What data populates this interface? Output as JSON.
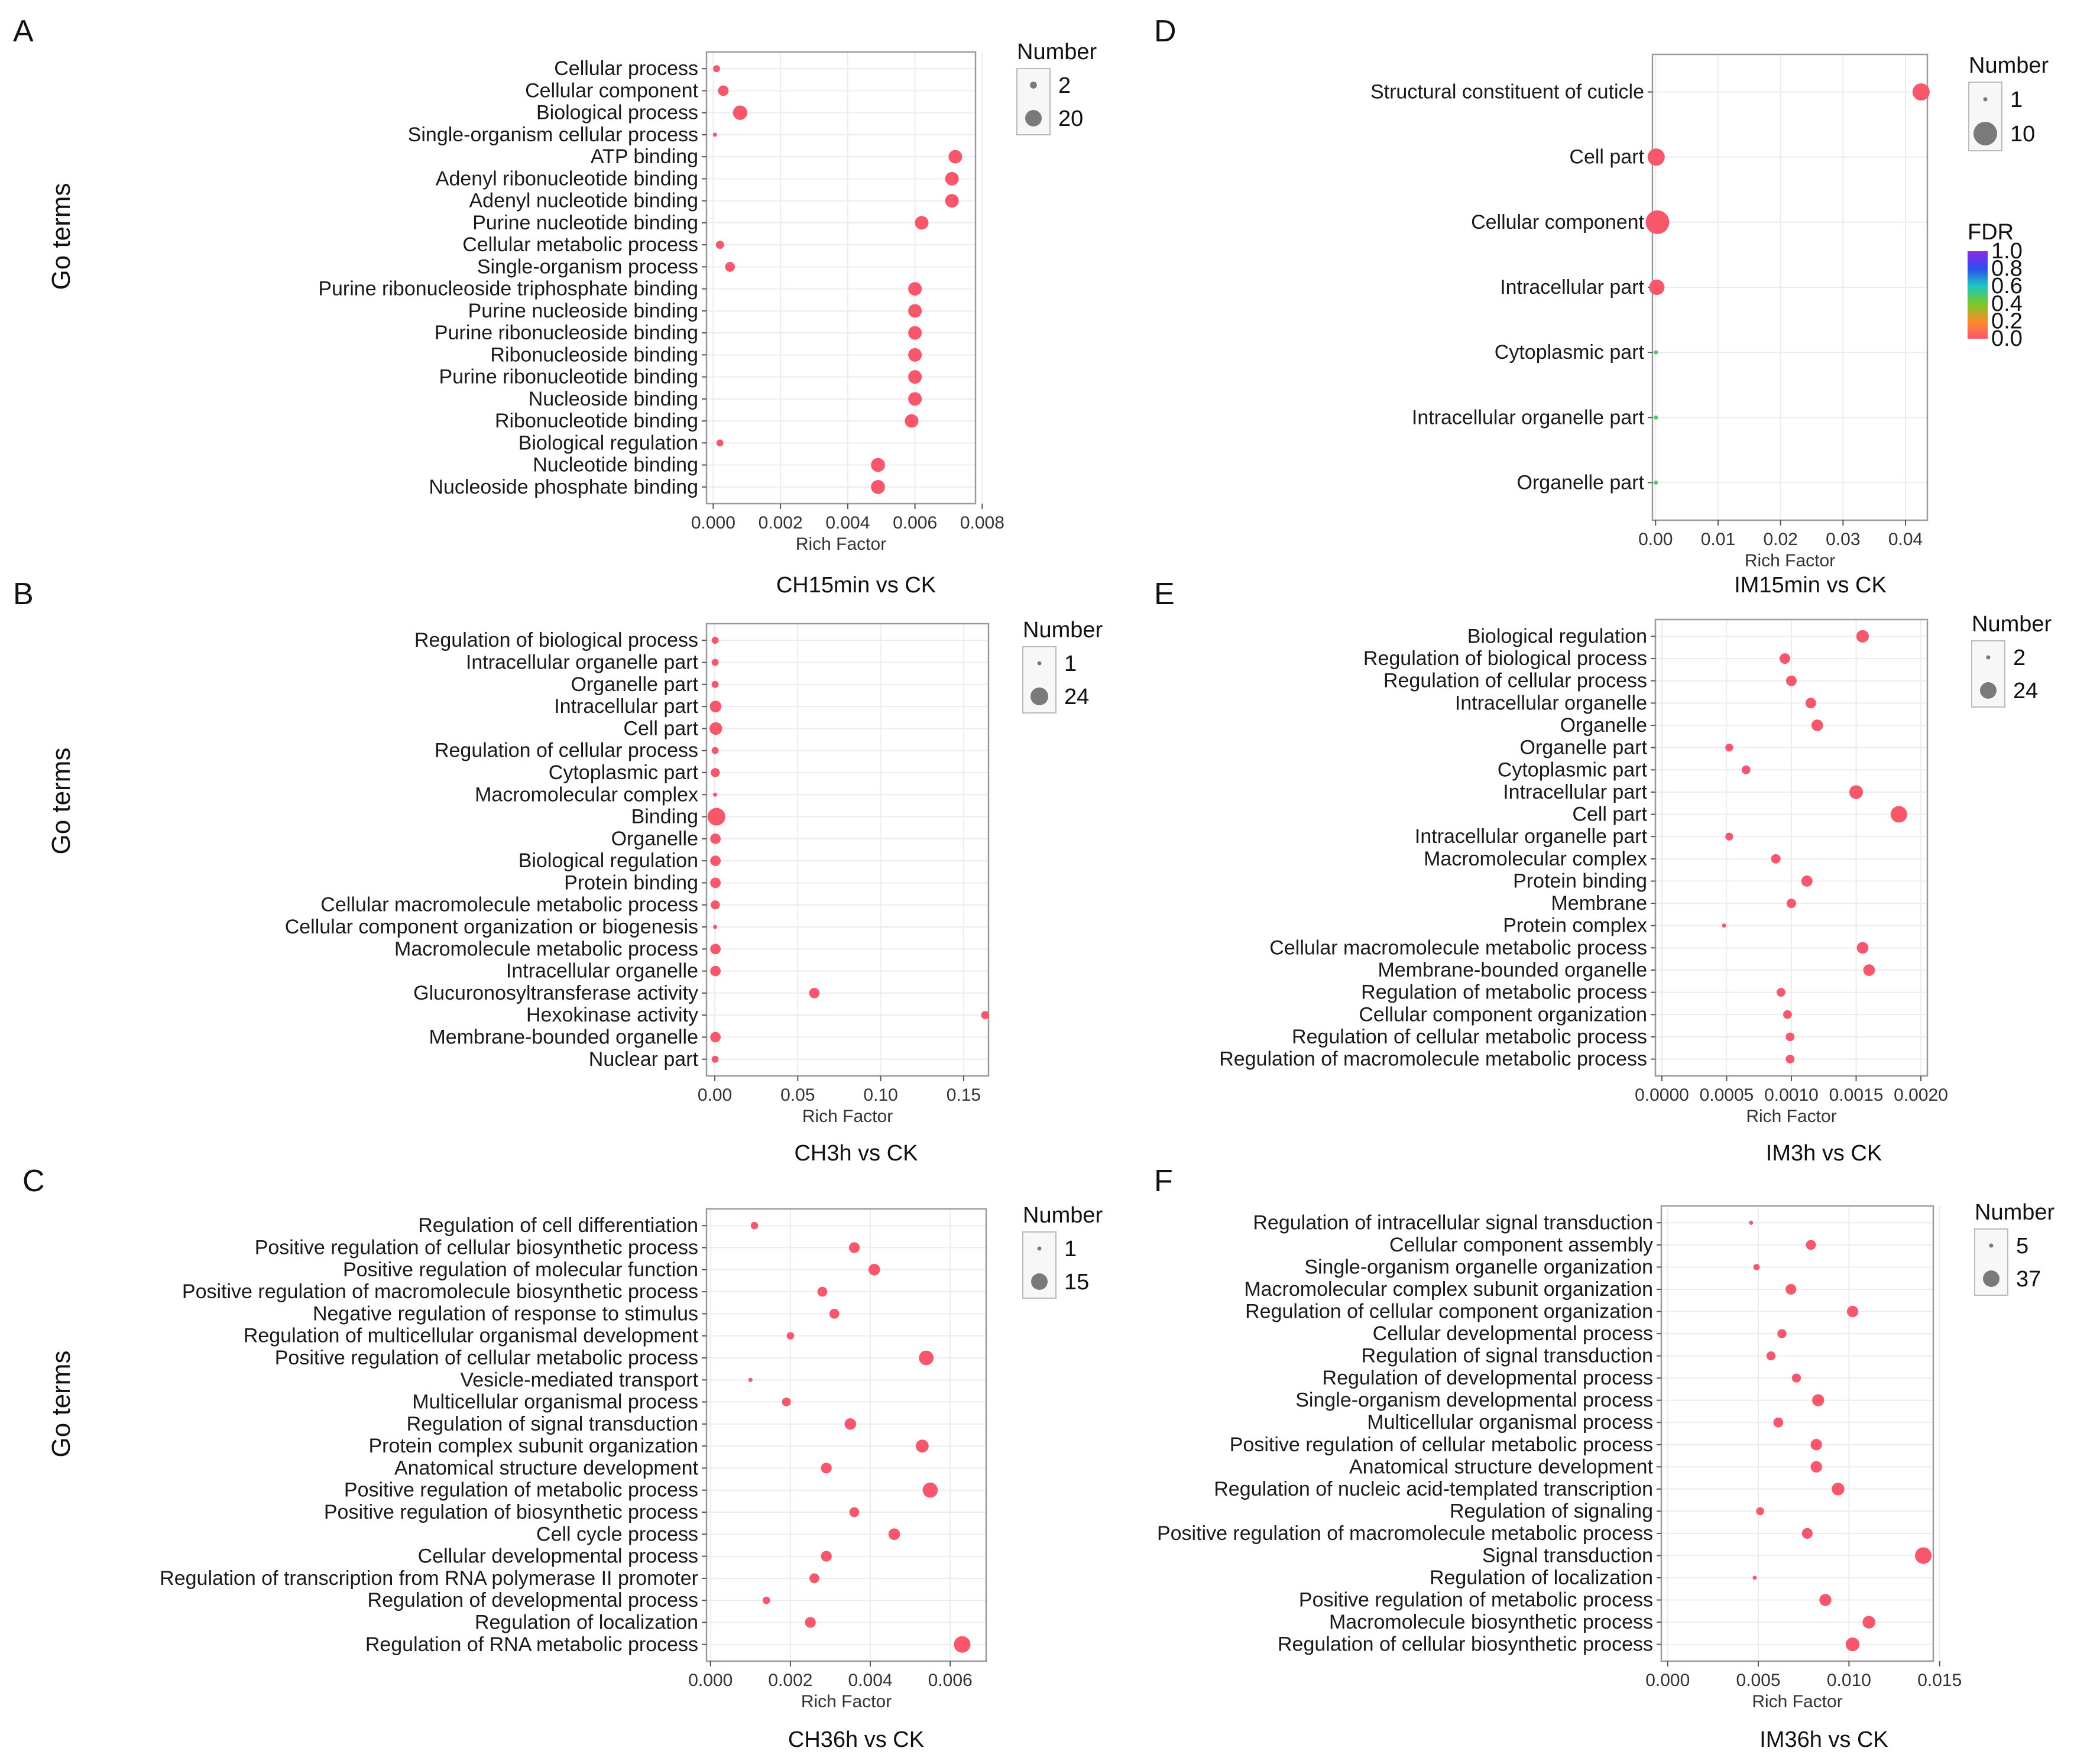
{
  "figure": {
    "y_axis_label": "Go terms",
    "x_axis_label": "Rich Factor",
    "legend_size_title": "Number",
    "legend_color_title": "FDR"
  },
  "colors": {
    "point": "#f8566b",
    "panel_border": "#9a9a9a",
    "grid": "#ececec"
  },
  "chart_data": [
    {
      "panel": "A",
      "type": "scatter",
      "title": "CH15min vs CK",
      "xlabel": "Rich Factor",
      "ylabel": "Go terms",
      "xlim": [
        -0.0002,
        0.0078
      ],
      "xticks": [
        0,
        0.002,
        0.004,
        0.006,
        0.008
      ],
      "xtick_labels": [
        "0.000",
        "0.002",
        "0.004",
        "0.006",
        "0.008"
      ],
      "size_legend": {
        "values": [
          2,
          20
        ],
        "labels": [
          "2",
          "20"
        ]
      },
      "terms": [
        "Cellular process",
        "Cellular component",
        "Biological process",
        "Single-organism cellular process",
        "ATP binding",
        "Adenyl ribonucleotide binding",
        "Adenyl nucleotide binding",
        "Purine nucleotide binding",
        "Cellular metabolic process",
        "Single-organism process",
        "Purine ribonucleoside triphosphate binding",
        "Purine nucleoside binding",
        "Purine ribonucleoside binding",
        "Ribonucleoside binding",
        "Purine ribonucleotide binding",
        "Nucleoside binding",
        "Ribonucleotide binding",
        "Biological regulation",
        "Nucleotide binding",
        "Nucleoside phosphate binding"
      ],
      "x": [
        0.0001,
        0.0003,
        0.0008,
        5e-05,
        0.0072,
        0.0071,
        0.0071,
        0.0062,
        0.0002,
        0.0005,
        0.006,
        0.006,
        0.006,
        0.006,
        0.006,
        0.006,
        0.0059,
        0.0002,
        0.0049,
        0.0049
      ],
      "number": [
        2,
        6,
        14,
        1,
        12,
        12,
        12,
        12,
        3,
        5,
        12,
        12,
        12,
        12,
        12,
        12,
        12,
        2,
        13,
        13
      ]
    },
    {
      "panel": "B",
      "type": "scatter",
      "title": "CH3h vs CK",
      "xlabel": "Rich Factor",
      "ylabel": "Go terms",
      "xlim": [
        -0.005,
        0.165
      ],
      "xticks": [
        0,
        0.05,
        0.1,
        0.15
      ],
      "xtick_labels": [
        "0.00",
        "0.05",
        "0.10",
        "0.15"
      ],
      "size_legend": {
        "values": [
          1,
          24
        ],
        "labels": [
          "1",
          "24"
        ]
      },
      "terms": [
        "Regulation of biological process",
        "Intracellular organelle part",
        "Organelle part",
        "Intracellular part",
        "Cell part",
        "Regulation of cellular process",
        "Cytoplasmic part",
        "Macromolecular complex",
        "Binding",
        "Organelle",
        "Biological regulation",
        "Protein binding",
        "Cellular macromolecule metabolic process",
        "Cellular component organization or biogenesis",
        "Macromolecule metabolic process",
        "Intracellular organelle",
        "Glucuronosyltransferase activity",
        "Hexokinase activity",
        "Membrane-bounded organelle",
        "Nuclear part"
      ],
      "x": [
        0.0002,
        0.0002,
        0.0002,
        0.0005,
        0.0006,
        0.0002,
        0.0003,
        0.0002,
        0.001,
        0.0004,
        0.0004,
        0.0004,
        0.0003,
        0.0002,
        0.0004,
        0.0004,
        0.06,
        0.163,
        0.0004,
        0.0002
      ],
      "number": [
        2,
        2,
        2,
        8,
        10,
        2,
        4,
        1,
        24,
        6,
        6,
        6,
        4,
        1,
        6,
        6,
        6,
        3,
        6,
        2
      ]
    },
    {
      "panel": "C",
      "type": "scatter",
      "title": "CH36h vs CK",
      "xlabel": "Rich Factor",
      "ylabel": "Go terms",
      "xlim": [
        -0.0001,
        0.0069
      ],
      "xticks": [
        0,
        0.002,
        0.004,
        0.006
      ],
      "xtick_labels": [
        "0.000",
        "0.002",
        "0.004",
        "0.006"
      ],
      "size_legend": {
        "values": [
          1,
          15
        ],
        "labels": [
          "1",
          "15"
        ]
      },
      "terms": [
        "Regulation of cell differentiation",
        "Positive regulation of cellular biosynthetic process",
        "Positive regulation of molecular function",
        "Positive regulation of macromolecule biosynthetic process",
        "Negative regulation of response to stimulus",
        "Regulation of multicellular organismal development",
        "Positive regulation of cellular metabolic process",
        "Vesicle-mediated transport",
        "Multicellular organismal process",
        "Regulation of signal transduction",
        "Protein complex subunit organization",
        "Anatomical structure development",
        "Positive regulation of metabolic process",
        "Positive regulation of biosynthetic process",
        "Cell cycle process",
        "Cellular developmental process",
        "Regulation of transcription from RNA polymerase II promoter",
        "Regulation of developmental process",
        "Regulation of localization",
        "Regulation of RNA metabolic process"
      ],
      "x": [
        0.0011,
        0.0036,
        0.0041,
        0.0028,
        0.0031,
        0.002,
        0.0054,
        0.001,
        0.0019,
        0.0035,
        0.0053,
        0.0029,
        0.0055,
        0.0036,
        0.0046,
        0.0029,
        0.0026,
        0.0014,
        0.0025,
        0.0063
      ],
      "number": [
        2,
        5,
        6,
        4,
        4,
        2,
        11,
        1,
        3,
        6,
        8,
        5,
        12,
        4,
        6,
        5,
        4,
        2,
        5,
        15
      ]
    },
    {
      "panel": "D",
      "type": "scatter",
      "title": "IM15min vs CK",
      "xlabel": "Rich Factor",
      "ylabel": "",
      "xlim": [
        -0.0005,
        0.0435
      ],
      "xticks": [
        0,
        0.01,
        0.02,
        0.03,
        0.04
      ],
      "xtick_labels": [
        "0.00",
        "0.01",
        "0.02",
        "0.03",
        "0.04"
      ],
      "size_legend": {
        "values": [
          1,
          10
        ],
        "labels": [
          "1",
          "10"
        ]
      },
      "fdr_legend": {
        "ticks": [
          "1.0",
          "0.8",
          "0.6",
          "0.4",
          "0.2",
          "0.0"
        ]
      },
      "terms": [
        "Structural constituent of cuticle",
        "Cell part",
        "Cellular component",
        "Intracellular part",
        "Cytoplasmic part",
        "Intracellular organelle part",
        "Organelle part"
      ],
      "x": [
        0.0425,
        0.0001,
        0.0003,
        0.0002,
        5e-05,
        5e-05,
        5e-05
      ],
      "number": [
        5,
        5,
        10,
        4,
        1,
        1,
        1
      ],
      "fdr": [
        0.0,
        0.0,
        0.0,
        0.0,
        0.5,
        0.5,
        0.5
      ]
    },
    {
      "panel": "E",
      "type": "scatter",
      "title": "IM3h vs CK",
      "xlabel": "Rich Factor",
      "ylabel": "",
      "xlim": [
        -5e-05,
        0.00205
      ],
      "xticks": [
        0,
        0.0005,
        0.001,
        0.0015,
        0.002
      ],
      "xtick_labels": [
        "0.0000",
        "0.0005",
        "0.0010",
        "0.0015",
        "0.0020"
      ],
      "size_legend": {
        "values": [
          2,
          24
        ],
        "labels": [
          "2",
          "24"
        ]
      },
      "terms": [
        "Biological regulation",
        "Regulation of biological process",
        "Regulation of cellular process",
        "Intracellular organelle",
        "Organelle",
        "Organelle part",
        "Cytoplasmic part",
        "Intracellular part",
        "Cell part",
        "Intracellular organelle part",
        "Macromolecular complex",
        "Protein binding",
        "Membrane",
        "Protein complex",
        "Cellular macromolecule metabolic process",
        "Membrane-bounded organelle",
        "Regulation of metabolic process",
        "Cellular component organization",
        "Regulation of cellular metabolic process",
        "Regulation of macromolecule metabolic process"
      ],
      "x": [
        0.00155,
        0.00095,
        0.001,
        0.00115,
        0.0012,
        0.00052,
        0.00065,
        0.0015,
        0.00183,
        0.00052,
        0.00088,
        0.00112,
        0.001,
        0.00048,
        0.00155,
        0.0016,
        0.00092,
        0.00097,
        0.00099,
        0.00099
      ],
      "number": [
        12,
        8,
        8,
        8,
        10,
        4,
        5,
        15,
        24,
        4,
        6,
        9,
        6,
        2,
        10,
        10,
        5,
        5,
        5,
        5
      ]
    },
    {
      "panel": "F",
      "type": "scatter",
      "title": "IM36h vs CK",
      "xlabel": "Rich Factor",
      "ylabel": "",
      "xlim": [
        -0.00035,
        0.01465
      ],
      "xticks": [
        0,
        0.005,
        0.01,
        0.015
      ],
      "xtick_labels": [
        "0.000",
        "0.005",
        "0.010",
        "0.015"
      ],
      "size_legend": {
        "values": [
          5,
          37
        ],
        "labels": [
          "5",
          "37"
        ]
      },
      "terms": [
        "Regulation of intracellular signal transduction",
        "Cellular component assembly",
        "Single-organism organelle organization",
        "Macromolecular complex subunit organization",
        "Regulation of cellular component organization",
        "Cellular developmental process",
        "Regulation of signal transduction",
        "Regulation of developmental process",
        "Single-organism developmental process",
        "Multicellular organismal process",
        "Positive regulation of cellular metabolic process",
        "Anatomical structure development",
        "Regulation of nucleic acid-templated transcription",
        "Regulation of signaling",
        "Positive regulation of macromolecule metabolic process",
        "Signal transduction",
        "Regulation of localization",
        "Positive regulation of metabolic process",
        "Macromolecule biosynthetic process",
        "Regulation of cellular biosynthetic process"
      ],
      "x": [
        0.0046,
        0.0079,
        0.0049,
        0.0068,
        0.0102,
        0.0063,
        0.0057,
        0.0071,
        0.0083,
        0.0061,
        0.0082,
        0.0082,
        0.0094,
        0.0051,
        0.0077,
        0.0141,
        0.0048,
        0.0087,
        0.0111,
        0.0102
      ],
      "number": [
        5,
        12,
        6,
        14,
        16,
        10,
        10,
        10,
        18,
        12,
        16,
        16,
        20,
        8,
        14,
        37,
        5,
        18,
        20,
        24
      ]
    }
  ]
}
